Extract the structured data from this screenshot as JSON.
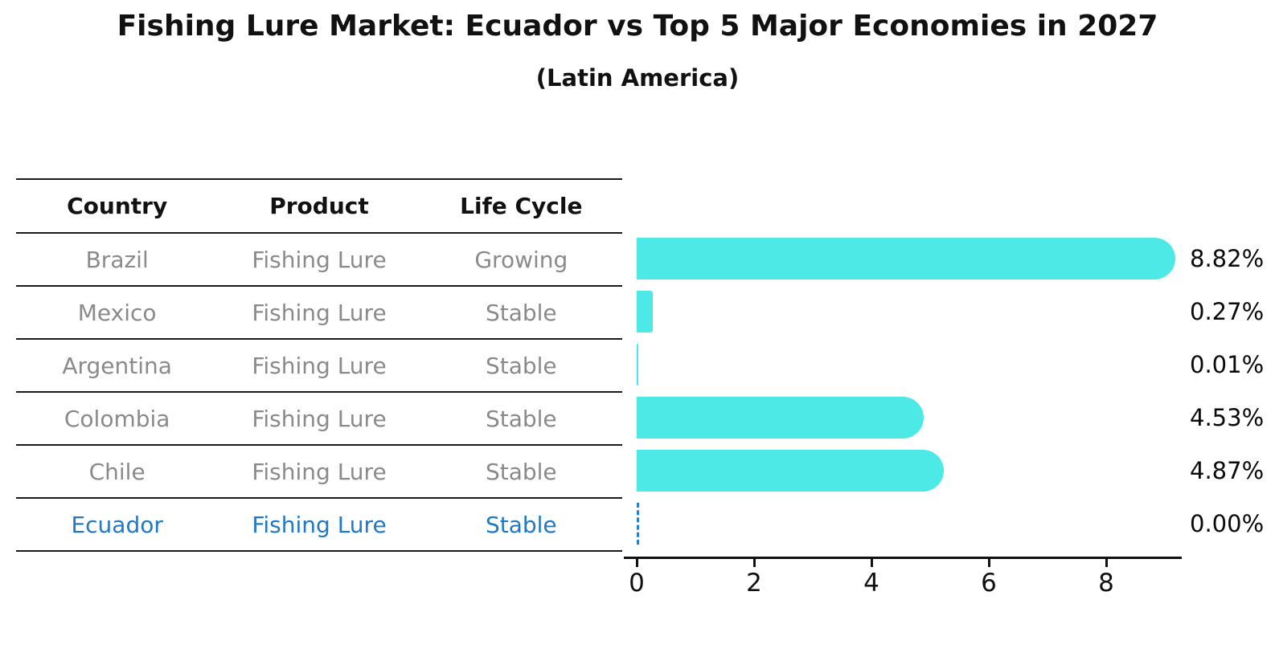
{
  "title": "Fishing Lure Market: Ecuador vs Top 5 Major Economies in 2027",
  "subtitle": "(Latin America)",
  "table": {
    "headers": [
      "Country",
      "Product",
      "Life Cycle"
    ],
    "rows": [
      {
        "country": "Brazil",
        "product": "Fishing Lure",
        "life_cycle": "Growing",
        "highlight": false
      },
      {
        "country": "Mexico",
        "product": "Fishing Lure",
        "life_cycle": "Stable",
        "highlight": false
      },
      {
        "country": "Argentina",
        "product": "Fishing Lure",
        "life_cycle": "Stable",
        "highlight": false
      },
      {
        "country": "Colombia",
        "product": "Fishing Lure",
        "life_cycle": "Stable",
        "highlight": false
      },
      {
        "country": "Chile",
        "product": "Fishing Lure",
        "life_cycle": "Stable",
        "highlight": false
      },
      {
        "country": "Ecuador",
        "product": "Fishing Lure",
        "life_cycle": "Stable",
        "highlight": true
      }
    ]
  },
  "chart_data": {
    "type": "bar",
    "orientation": "horizontal",
    "title": "Fishing Lure Market: Ecuador vs Top 5 Major Economies in 2027",
    "subtitle": "(Latin America)",
    "categories": [
      "Brazil",
      "Mexico",
      "Argentina",
      "Colombia",
      "Chile",
      "Ecuador"
    ],
    "values": [
      8.82,
      0.27,
      0.01,
      4.53,
      4.87,
      0.0
    ],
    "value_labels": [
      "8.82%",
      "0.27%",
      "0.01%",
      "4.53%",
      "4.87%",
      "0.00%"
    ],
    "xlabel": "",
    "ylabel": "",
    "xlim": [
      0,
      9.3
    ],
    "x_ticks": [
      0,
      2,
      4,
      6,
      8
    ],
    "grid": false,
    "legend": "none",
    "highlight_index": 5,
    "highlight_style": "dashed-outline-zero-bar"
  },
  "colors": {
    "bar_cyan": "#4DE9E6",
    "highlight_blue": "#1F78C8",
    "row_text_gray": "#8A8A8A",
    "text_black": "#111111"
  }
}
